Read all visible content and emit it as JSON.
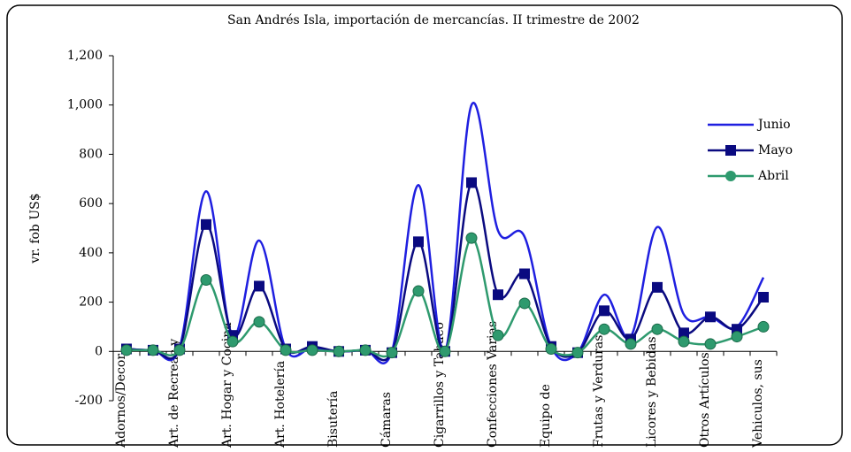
{
  "chart_data": {
    "type": "line",
    "title": "San Andrés Isla, importación de mercancías. II trimestre de 2002",
    "y_label": "vr. fob US$",
    "categories": [
      "Adornos/Decor.",
      null,
      "Art. de Recreac.y",
      null,
      "Art. Hogar y Cocina",
      null,
      "Art. Hotelería",
      null,
      "Bisutería",
      null,
      "Cámaras",
      null,
      "Cigarrillos y Tabaco",
      null,
      "Confecciones Varias",
      null,
      "Equipo de",
      null,
      "Frutas y Verduras",
      null,
      "Licores y Bebidas",
      null,
      "Otros Artículos",
      null,
      "Vehiculos, sus"
    ],
    "series": [
      {
        "name": "Junio",
        "color": "#1f1fe0",
        "marker": "none",
        "values": [
          10,
          5,
          15,
          650,
          60,
          450,
          10,
          15,
          0,
          5,
          0,
          675,
          0,
          1000,
          490,
          465,
          20,
          -5,
          230,
          60,
          505,
          150,
          140,
          100,
          300
        ]
      },
      {
        "name": "Mayo",
        "color": "#0a0a80",
        "marker": "square",
        "values": [
          10,
          5,
          10,
          515,
          65,
          265,
          10,
          20,
          0,
          5,
          -5,
          445,
          0,
          685,
          230,
          315,
          20,
          -5,
          165,
          50,
          260,
          75,
          140,
          90,
          220
        ]
      },
      {
        "name": "Abril",
        "color": "#2e9a6e",
        "marker": "circle",
        "values": [
          5,
          5,
          5,
          290,
          40,
          120,
          5,
          5,
          0,
          5,
          -5,
          245,
          0,
          460,
          65,
          195,
          10,
          -5,
          90,
          30,
          90,
          40,
          30,
          60,
          100
        ]
      }
    ],
    "ylim": [
      -200,
      1200
    ],
    "yticks": [
      -200,
      0,
      200,
      400,
      600,
      800,
      {
        "value": 1000,
        "label": "1,000"
      },
      {
        "value": 1200,
        "label": "1,200"
      }
    ],
    "smooth": true,
    "legend": "right"
  }
}
